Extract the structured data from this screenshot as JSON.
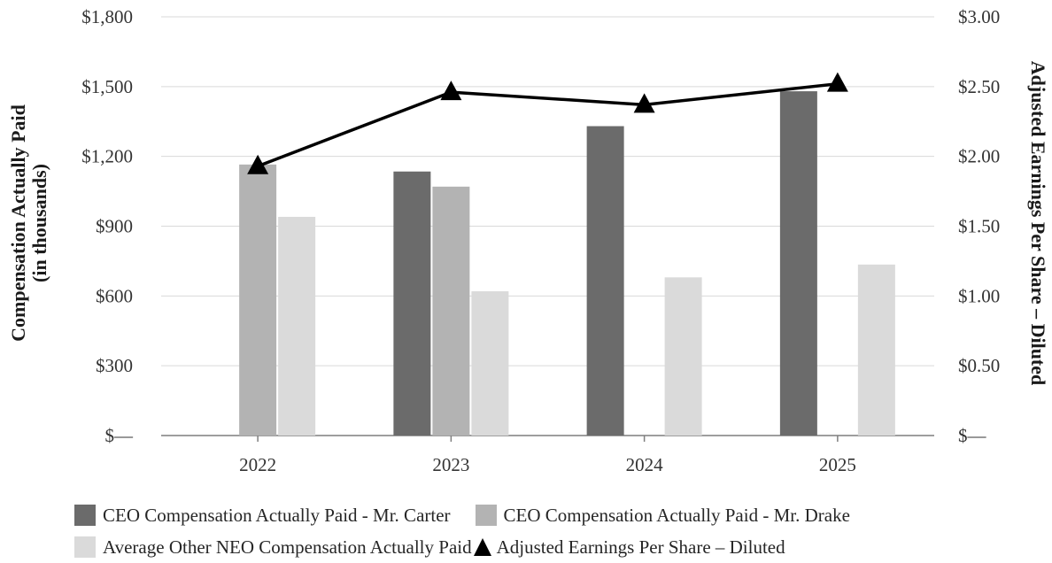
{
  "chart_data": {
    "type": "bar",
    "categories": [
      "2022",
      "2023",
      "2024",
      "2025"
    ],
    "series": [
      {
        "name": "CEO Compensation Actually Paid - Mr. Carter",
        "kind": "bar",
        "axis": "left",
        "color": "#6b6b6b",
        "values": [
          null,
          1135,
          1330,
          1480
        ]
      },
      {
        "name": "CEO Compensation Actually Paid - Mr. Drake",
        "kind": "bar",
        "axis": "left",
        "color": "#b3b3b3",
        "values": [
          1165,
          1070,
          null,
          null
        ]
      },
      {
        "name": "Average Other NEO Compensation Actually Paid",
        "kind": "bar",
        "axis": "left",
        "color": "#dadada",
        "values": [
          940,
          620,
          680,
          735
        ]
      },
      {
        "name": "Adjusted Earnings Per Share – Diluted",
        "kind": "line",
        "axis": "right",
        "color": "#000000",
        "marker": "triangle",
        "values": [
          1.93,
          2.46,
          2.37,
          2.52
        ]
      }
    ],
    "y_left": {
      "label_line1": "Compensation Actually Paid",
      "label_line2": "(in thousands)",
      "range": [
        0,
        1800
      ],
      "ticks": [
        0,
        300,
        600,
        900,
        1200,
        1500,
        1800
      ],
      "tick_labels": [
        "$—",
        "$300",
        "$600",
        "$900",
        "$1,200",
        "$1,500",
        "$1,800"
      ]
    },
    "y_right": {
      "label": "Adjusted Earnings Per Share – Diluted",
      "range": [
        0,
        3.0
      ],
      "ticks": [
        0,
        0.5,
        1.0,
        1.5,
        2.0,
        2.5,
        3.0
      ],
      "tick_labels": [
        "$—",
        "$0.50",
        "$1.00",
        "$1.50",
        "$2.00",
        "$2.50",
        "$3.00"
      ]
    },
    "grid": true,
    "legend_position": "bottom",
    "gridline_color": "#d9d9d9",
    "axis_color": "#7f7f7f"
  }
}
